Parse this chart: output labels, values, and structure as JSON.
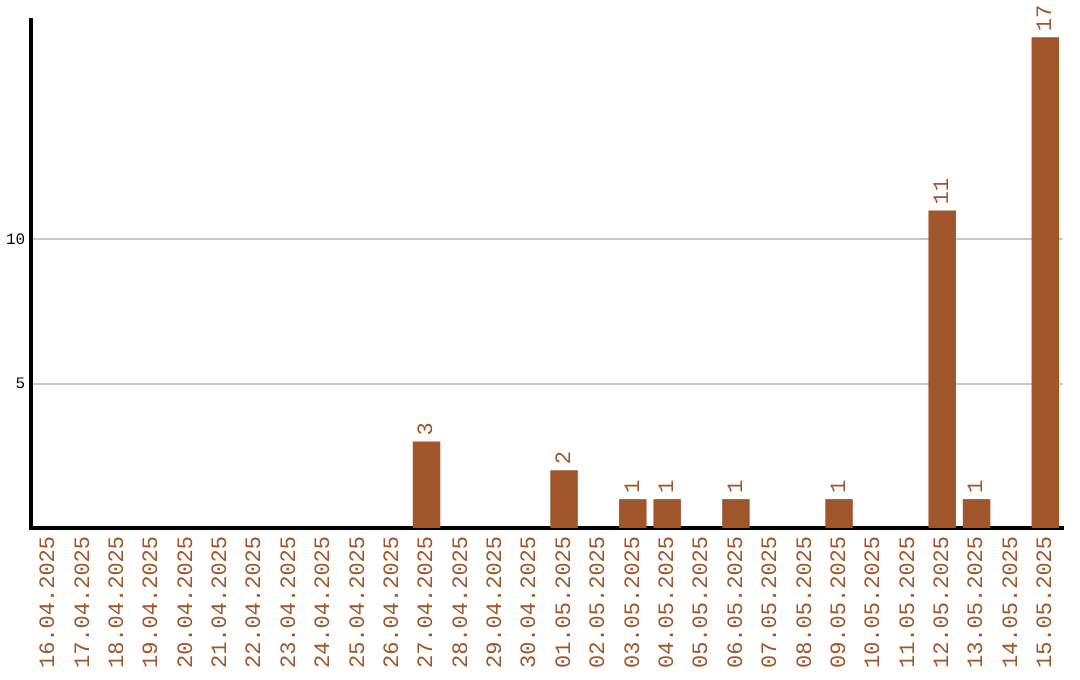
{
  "chart_data": {
    "type": "bar",
    "categories": [
      "16.04.2025",
      "17.04.2025",
      "18.04.2025",
      "19.04.2025",
      "20.04.2025",
      "21.04.2025",
      "22.04.2025",
      "23.04.2025",
      "24.04.2025",
      "25.04.2025",
      "26.04.2025",
      "27.04.2025",
      "28.04.2025",
      "29.04.2025",
      "30.04.2025",
      "01.05.2025",
      "02.05.2025",
      "03.05.2025",
      "04.05.2025",
      "05.05.2025",
      "06.05.2025",
      "07.05.2025",
      "08.05.2025",
      "09.05.2025",
      "10.05.2025",
      "11.05.2025",
      "12.05.2025",
      "13.05.2025",
      "14.05.2025",
      "15.05.2025"
    ],
    "values": [
      0,
      0,
      0,
      0,
      0,
      0,
      0,
      0,
      0,
      0,
      0,
      3,
      0,
      0,
      0,
      2,
      0,
      1,
      1,
      0,
      1,
      0,
      0,
      1,
      0,
      0,
      11,
      1,
      0,
      17
    ],
    "value_labels": [
      null,
      null,
      null,
      null,
      null,
      null,
      null,
      null,
      null,
      null,
      null,
      "3",
      null,
      null,
      null,
      "2",
      null,
      "1",
      "1",
      null,
      "1",
      null,
      null,
      "1",
      null,
      null,
      "11",
      "1",
      null,
      "17"
    ],
    "color": "#a0562a",
    "ylim": [
      0,
      17.6
    ],
    "yticks": [
      5,
      10
    ],
    "grid": "y",
    "legend": false
  }
}
